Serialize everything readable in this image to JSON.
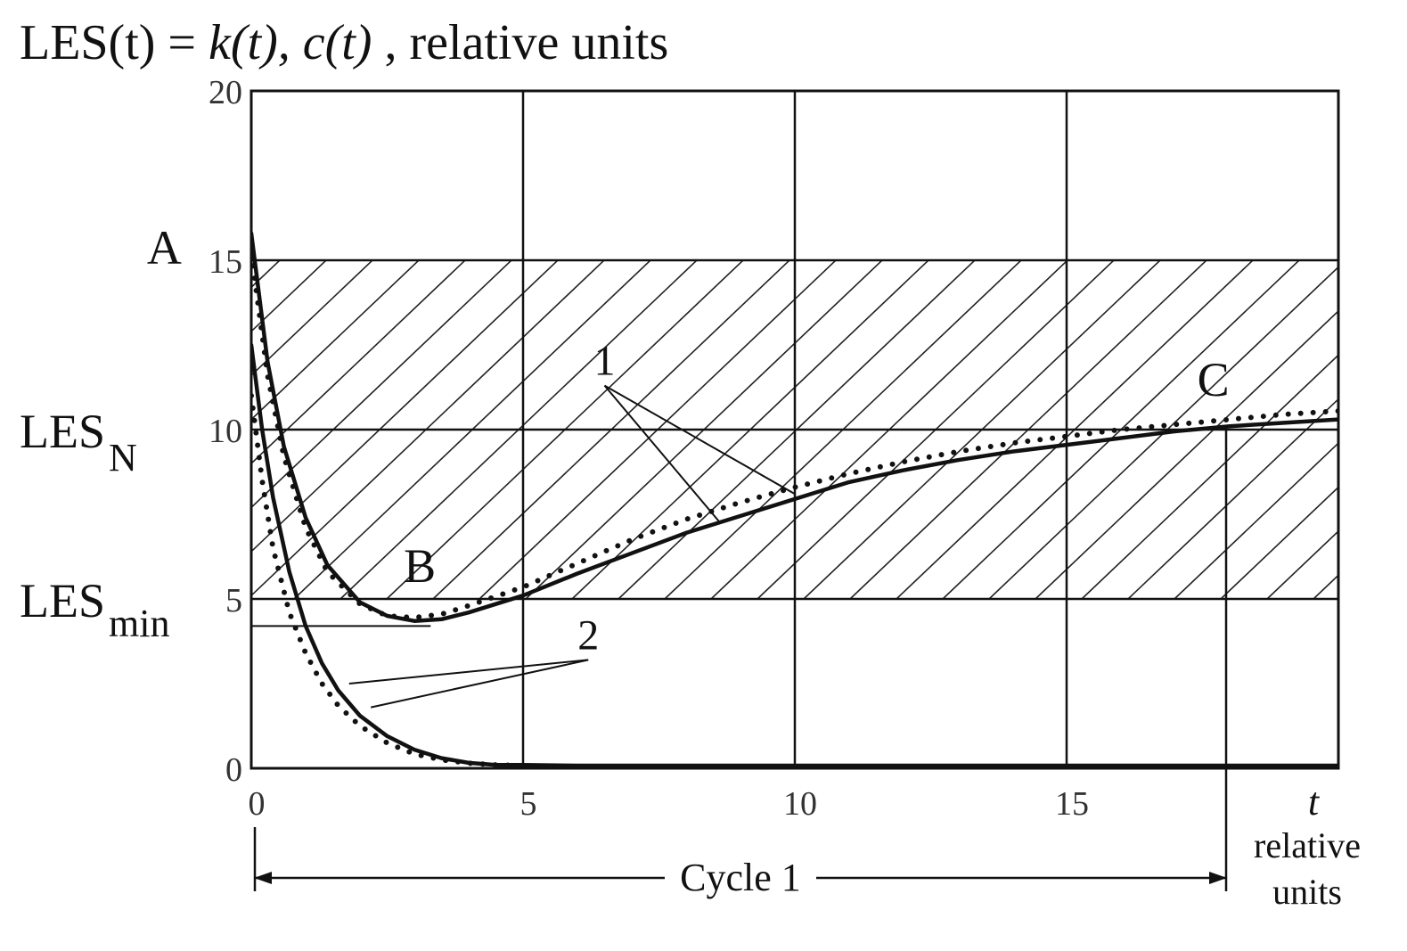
{
  "chart_data": {
    "type": "line",
    "title": {
      "prefix": "LES(t) = ",
      "k_func": "k(t),",
      "c_func": "c(t)",
      "suffix": " , relative units"
    },
    "x_axis": {
      "range": [
        0,
        20
      ],
      "ticks": [
        0,
        5,
        10,
        15
      ],
      "tick_labels": [
        "0",
        "5",
        "10",
        "15"
      ],
      "end_symbol": "t",
      "unit_label": [
        "relative",
        "units"
      ]
    },
    "y_axis": {
      "range": [
        0,
        20
      ],
      "ticks": [
        0,
        5,
        10,
        15,
        20
      ],
      "tick_labels": [
        "0",
        "5",
        "10",
        "15",
        "20"
      ]
    },
    "grid": true,
    "hatched_region": {
      "y_from": 5,
      "y_to": 15
    },
    "levels": [
      {
        "main": "LES",
        "sub": "N",
        "y": 10
      },
      {
        "main": "LES",
        "sub": "min",
        "y": 5
      }
    ],
    "les_min_value": 4.2,
    "point_labels": [
      {
        "text": "A",
        "x": -1.6,
        "y": 14.9
      },
      {
        "text": "B",
        "x": 3.1,
        "y": 5.5
      },
      {
        "text": "C",
        "x": 17.7,
        "y": 11.0
      }
    ],
    "curve_labels": [
      {
        "text": "1",
        "x": 6.5,
        "y": 11.3
      },
      {
        "text": "2",
        "x": 6.2,
        "y": 3.2
      }
    ],
    "cycle": {
      "label": "Cycle 1",
      "from": 0,
      "to": 18
    },
    "series": [
      {
        "group": "1",
        "style": "solid",
        "x": [
          0.0,
          0.3,
          0.6,
          1.0,
          1.4,
          2.0,
          2.5,
          3.0,
          3.5,
          4.0,
          5.0,
          6.0,
          7.0,
          8.0,
          9.0,
          10.0,
          11.0,
          12.0,
          13.0,
          14.0,
          15.0,
          16.0,
          17.0,
          18.0,
          19.0,
          20.0
        ],
        "y": [
          15.8,
          12.0,
          9.5,
          7.4,
          6.0,
          4.9,
          4.5,
          4.35,
          4.4,
          4.6,
          5.1,
          5.75,
          6.35,
          6.95,
          7.45,
          7.95,
          8.45,
          8.8,
          9.1,
          9.35,
          9.55,
          9.75,
          9.95,
          10.1,
          10.2,
          10.3
        ]
      },
      {
        "group": "1",
        "style": "dotted",
        "x": [
          0.0,
          0.3,
          0.6,
          1.0,
          1.4,
          2.0,
          2.5,
          3.0,
          3.5,
          4.0,
          5.0,
          6.0,
          7.0,
          8.0,
          9.0,
          10.0,
          11.0,
          12.0,
          13.0,
          14.0,
          15.0,
          16.0,
          17.0,
          18.0,
          19.0,
          20.0
        ],
        "y": [
          15.2,
          11.6,
          9.2,
          7.1,
          5.8,
          4.85,
          4.5,
          4.45,
          4.55,
          4.8,
          5.35,
          6.05,
          6.75,
          7.35,
          7.85,
          8.3,
          8.7,
          9.05,
          9.35,
          9.6,
          9.8,
          10.0,
          10.15,
          10.3,
          10.45,
          10.55
        ]
      },
      {
        "group": "2",
        "style": "solid",
        "x": [
          0.0,
          0.2,
          0.4,
          0.7,
          1.0,
          1.3,
          1.6,
          2.0,
          2.5,
          3.0,
          3.5,
          4.0,
          4.5,
          5.0,
          6.0,
          20.0
        ],
        "y": [
          12.5,
          10.0,
          8.0,
          5.8,
          4.2,
          3.1,
          2.3,
          1.55,
          0.95,
          0.55,
          0.3,
          0.16,
          0.1,
          0.1,
          0.08,
          0.08
        ]
      },
      {
        "group": "2",
        "style": "dotted",
        "x": [
          0.0,
          0.2,
          0.4,
          0.7,
          1.0,
          1.3,
          1.6,
          2.0,
          2.5,
          3.0,
          3.5,
          4.0,
          4.5,
          5.0
        ],
        "y": [
          11.0,
          8.5,
          6.5,
          4.6,
          3.4,
          2.5,
          1.85,
          1.25,
          0.75,
          0.42,
          0.25,
          0.15,
          0.1,
          0.08
        ]
      }
    ]
  }
}
